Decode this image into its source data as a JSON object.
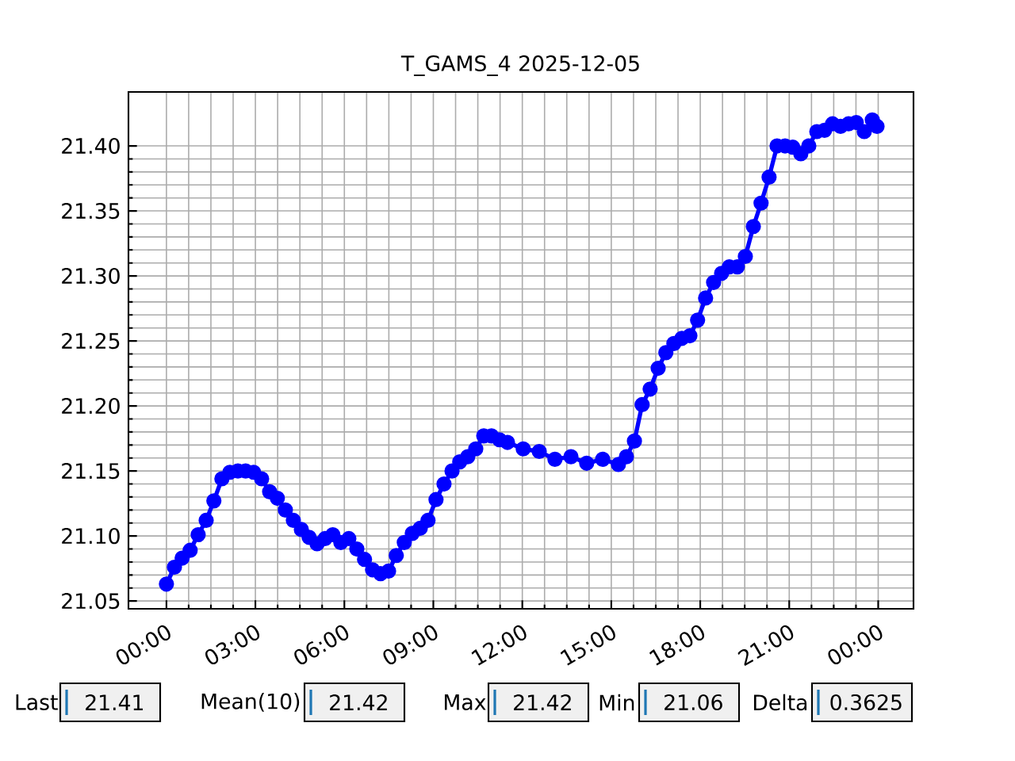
{
  "chart_data": {
    "type": "line",
    "title": "T_GAMS_4 2025-12-05",
    "x": [
      0,
      0.27,
      0.53,
      0.8,
      1.07,
      1.34,
      1.6,
      1.87,
      2.14,
      2.41,
      2.67,
      2.94,
      3.21,
      3.48,
      3.74,
      4.01,
      4.28,
      4.55,
      4.81,
      5.08,
      5.35,
      5.61,
      5.88,
      6.15,
      6.42,
      6.68,
      6.95,
      7.22,
      7.49,
      7.75,
      8.02,
      8.29,
      8.56,
      8.82,
      9.09,
      9.36,
      9.63,
      9.89,
      10.16,
      10.43,
      10.7,
      10.96,
      11.23,
      11.5,
      12.03,
      12.57,
      13.1,
      13.64,
      14.17,
      14.71,
      15.24,
      15.51,
      15.78,
      16.04,
      16.31,
      16.58,
      16.84,
      17.11,
      17.38,
      17.65,
      17.91,
      18.18,
      18.45,
      18.72,
      18.98,
      19.25,
      19.52,
      19.79,
      20.05,
      20.32,
      20.59,
      20.86,
      21.12,
      21.39,
      21.66,
      21.93,
      22.19,
      22.46,
      22.73,
      23.0,
      23.26,
      23.53,
      23.8,
      23.96
    ],
    "values": [
      21.063,
      21.076,
      21.083,
      21.089,
      21.101,
      21.112,
      21.127,
      21.144,
      21.149,
      21.15,
      21.15,
      21.149,
      21.144,
      21.134,
      21.129,
      21.12,
      21.112,
      21.105,
      21.099,
      21.094,
      21.098,
      21.101,
      21.095,
      21.098,
      21.09,
      21.082,
      21.074,
      21.071,
      21.073,
      21.085,
      21.095,
      21.102,
      21.106,
      21.112,
      21.128,
      21.14,
      21.15,
      21.157,
      21.161,
      21.167,
      21.177,
      21.177,
      21.174,
      21.172,
      21.167,
      21.165,
      21.159,
      21.161,
      21.156,
      21.159,
      21.155,
      21.161,
      21.173,
      21.201,
      21.213,
      21.229,
      21.241,
      21.248,
      21.252,
      21.254,
      21.266,
      21.283,
      21.295,
      21.302,
      21.307,
      21.307,
      21.315,
      21.338,
      21.356,
      21.376,
      21.4,
      21.4,
      21.399,
      21.394,
      21.4,
      21.411,
      21.412,
      21.417,
      21.415,
      21.417,
      21.418,
      21.411,
      21.42,
      21.415
    ],
    "color": "#0000ff",
    "marker": "circle",
    "line_style": "solid",
    "grid": true,
    "xlim": [
      -1.28,
      25.19
    ],
    "ylim": [
      21.044,
      21.4415
    ],
    "xticks": [
      {
        "value": 0,
        "label": "00:00"
      },
      {
        "value": 3,
        "label": "03:00"
      },
      {
        "value": 6,
        "label": "06:00"
      },
      {
        "value": 9,
        "label": "09:00"
      },
      {
        "value": 12,
        "label": "12:00"
      },
      {
        "value": 15,
        "label": "15:00"
      },
      {
        "value": 18,
        "label": "18:00"
      },
      {
        "value": 21,
        "label": "21:00"
      },
      {
        "value": 24,
        "label": "00:00"
      }
    ],
    "yticks": [
      {
        "value": 21.05,
        "label": "21.05"
      },
      {
        "value": 21.1,
        "label": "21.10"
      },
      {
        "value": 21.15,
        "label": "21.15"
      },
      {
        "value": 21.2,
        "label": "21.20"
      },
      {
        "value": 21.25,
        "label": "21.25"
      },
      {
        "value": 21.3,
        "label": "21.30"
      },
      {
        "value": 21.35,
        "label": "21.35"
      },
      {
        "value": 21.4,
        "label": "21.40"
      }
    ],
    "annotations": [
      "Last",
      "21.41",
      "Mean(10)",
      "21.42",
      "Max",
      "21.42",
      "Min",
      "21.06",
      "Delta",
      "0.3625"
    ]
  }
}
